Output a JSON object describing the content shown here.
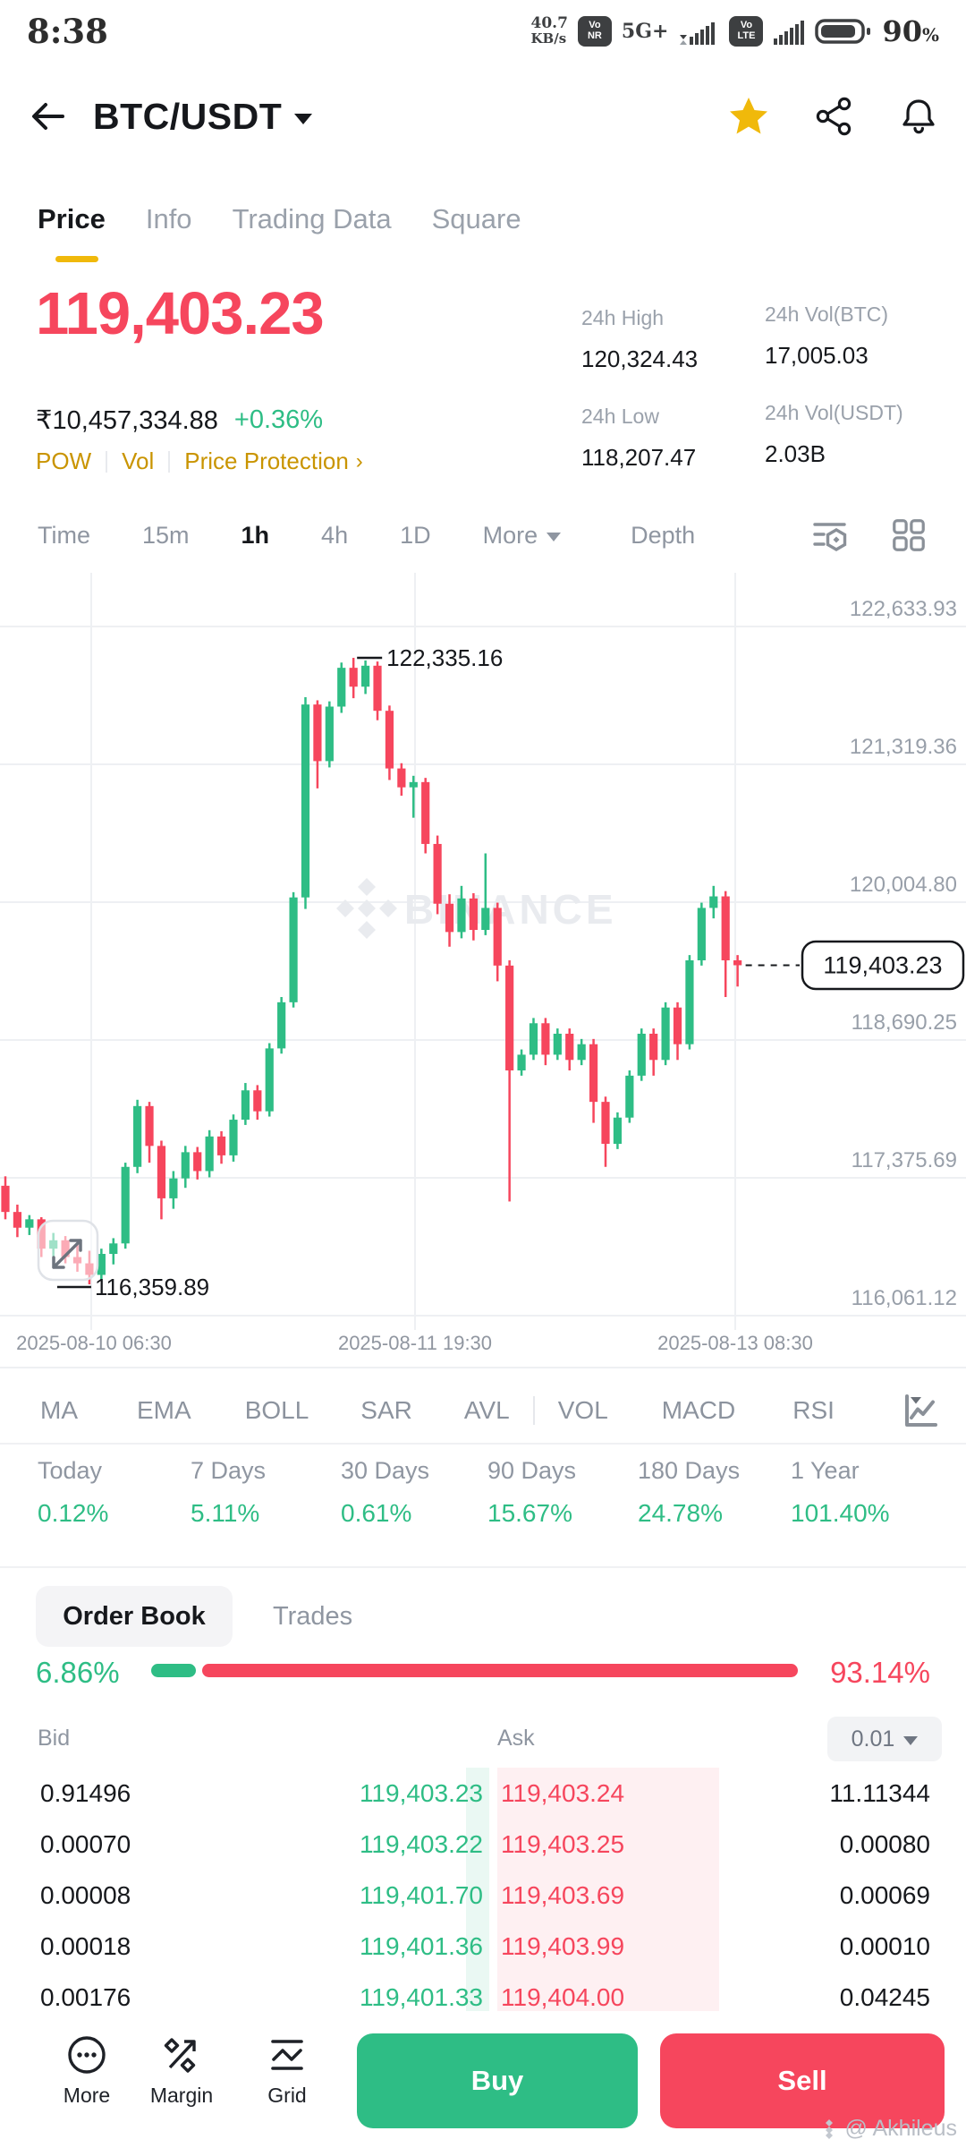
{
  "status_bar": {
    "time": "8:38",
    "net_speed": "40.7",
    "net_speed_unit": "KB/s",
    "badge_vonr": [
      "Vo",
      "NR"
    ],
    "network": "5G+",
    "badge_volte": [
      "Vo",
      "LTE"
    ],
    "battery_pct": "90",
    "battery_suffix": "%"
  },
  "header": {
    "pair": "BTC/USDT"
  },
  "nav_tabs": {
    "tabs": [
      {
        "label": "Price",
        "active": true
      },
      {
        "label": "Info",
        "active": false
      },
      {
        "label": "Trading Data",
        "active": false
      },
      {
        "label": "Square",
        "active": false
      }
    ]
  },
  "price_section": {
    "last_price": "119,403.23",
    "fiat_value": "₹10,457,334.88",
    "change_pct": "+0.36%",
    "tags": [
      "POW",
      "Vol",
      "Price Protection"
    ],
    "stats": [
      {
        "label": "24h High",
        "value": "120,324.43"
      },
      {
        "label": "24h Vol(BTC)",
        "value": "17,005.03"
      },
      {
        "label": "24h Low",
        "value": "118,207.47"
      },
      {
        "label": "24h Vol(USDT)",
        "value": "2.03B"
      }
    ]
  },
  "chart_toolbar": {
    "intervals": [
      "Time",
      "15m",
      "1h",
      "4h",
      "1D"
    ],
    "active_interval": "1h",
    "more_label": "More",
    "depth_label": "Depth"
  },
  "chart_data": {
    "type": "candlestick",
    "symbol": "BTC/USDT",
    "interval": "1h",
    "title": "BTC/USDT 1h candlestick chart",
    "up_color": "#2EBD85",
    "down_color": "#F6465D",
    "grid": true,
    "y_axis_labels": [
      "122,633.93",
      "121,319.36",
      "120,004.80",
      "118,690.25",
      "117,375.69",
      "116,061.12"
    ],
    "y_axis_values": [
      122633.93,
      121319.36,
      120004.8,
      118690.25,
      117375.69,
      116061.12
    ],
    "x_axis_labels": [
      "2025-08-10 06:30",
      "2025-08-11 19:30",
      "2025-08-13 08:30"
    ],
    "high_annotation_label": "122,335.16",
    "high_annotation_value": 122335.16,
    "low_annotation_label": "116,359.89",
    "low_annotation_value": 116359.89,
    "last_price_label": "119,403.23",
    "last_price_value": 119403.23,
    "watermark": "BINANCE",
    "candles": [
      [
        117300,
        117390,
        116980,
        117050
      ],
      [
        117050,
        117120,
        116810,
        116900
      ],
      [
        116900,
        117020,
        116830,
        116980
      ],
      [
        116980,
        117000,
        116620,
        116700
      ],
      [
        116700,
        116850,
        116600,
        116780
      ],
      [
        116780,
        116820,
        116560,
        116620
      ],
      [
        116620,
        116750,
        116480,
        116560
      ],
      [
        116560,
        116680,
        116359.89,
        116450
      ],
      [
        116450,
        116700,
        116400,
        116650
      ],
      [
        116650,
        116800,
        116550,
        116750
      ],
      [
        116750,
        117520,
        116700,
        117480
      ],
      [
        117480,
        118120,
        117420,
        118060
      ],
      [
        118060,
        118100,
        117520,
        117680
      ],
      [
        117680,
        117730,
        116980,
        117180
      ],
      [
        117180,
        117440,
        117080,
        117370
      ],
      [
        117370,
        117680,
        117280,
        117620
      ],
      [
        117620,
        117670,
        117360,
        117440
      ],
      [
        117440,
        117830,
        117380,
        117770
      ],
      [
        117770,
        117820,
        117510,
        117590
      ],
      [
        117590,
        117980,
        117530,
        117930
      ],
      [
        117930,
        118280,
        117880,
        118210
      ],
      [
        118210,
        118260,
        117930,
        118010
      ],
      [
        118010,
        118660,
        117960,
        118610
      ],
      [
        118610,
        119100,
        118560,
        119050
      ],
      [
        119050,
        120100,
        119000,
        120050
      ],
      [
        120050,
        121960,
        119940,
        121890
      ],
      [
        121890,
        121930,
        121090,
        121350
      ],
      [
        121350,
        121920,
        121290,
        121870
      ],
      [
        121870,
        122290,
        121810,
        122240
      ],
      [
        122240,
        122335.16,
        121950,
        122060
      ],
      [
        122060,
        122310,
        121990,
        122260
      ],
      [
        122260,
        122300,
        121740,
        121830
      ],
      [
        121830,
        121880,
        121170,
        121280
      ],
      [
        121280,
        121330,
        121020,
        121100
      ],
      [
        121100,
        121210,
        120810,
        121150
      ],
      [
        121150,
        121190,
        120470,
        120560
      ],
      [
        120560,
        120640,
        119890,
        119990
      ],
      [
        119990,
        120080,
        119580,
        119720
      ],
      [
        119720,
        120160,
        119660,
        120040
      ],
      [
        120040,
        120090,
        119640,
        119740
      ],
      [
        119740,
        120470,
        119690,
        119950
      ],
      [
        119950,
        120000,
        119250,
        119400
      ],
      [
        119400,
        119450,
        117150,
        118400
      ],
      [
        118400,
        118600,
        118350,
        118550
      ],
      [
        118550,
        118900,
        118500,
        118850
      ],
      [
        118850,
        118900,
        118450,
        118550
      ],
      [
        118550,
        118800,
        118500,
        118750
      ],
      [
        118750,
        118800,
        118400,
        118500
      ],
      [
        118500,
        118700,
        118450,
        118650
      ],
      [
        118650,
        118700,
        117900,
        118100
      ],
      [
        118100,
        118150,
        117480,
        117700
      ],
      [
        117700,
        118000,
        117650,
        117950
      ],
      [
        117950,
        118400,
        117900,
        118350
      ],
      [
        118350,
        118800,
        118300,
        118750
      ],
      [
        118750,
        118800,
        118350,
        118500
      ],
      [
        118500,
        119050,
        118450,
        119000
      ],
      [
        119000,
        119050,
        118500,
        118650
      ],
      [
        118650,
        119500,
        118600,
        119450
      ],
      [
        119450,
        120000,
        119400,
        119950
      ],
      [
        119950,
        120160,
        119850,
        120060
      ],
      [
        120060,
        120110,
        119100,
        119450
      ],
      [
        119450,
        119500,
        119200,
        119403.23
      ]
    ]
  },
  "indicators": {
    "main": [
      "MA",
      "EMA",
      "BOLL",
      "SAR",
      "AVL"
    ],
    "sub": [
      "VOL",
      "MACD",
      "RSI"
    ]
  },
  "returns": {
    "items": [
      {
        "label": "Today",
        "value": "0.12%"
      },
      {
        "label": "7 Days",
        "value": "5.11%"
      },
      {
        "label": "30 Days",
        "value": "0.61%"
      },
      {
        "label": "90 Days",
        "value": "15.67%"
      },
      {
        "label": "180 Days",
        "value": "24.78%"
      },
      {
        "label": "1 Year",
        "value": "101.40%"
      }
    ]
  },
  "orderbook": {
    "tab_active": "Order Book",
    "tab_inactive": "Trades",
    "buy_pct_label": "6.86%",
    "sell_pct_label": "93.14%",
    "buy_pct": 6.86,
    "sell_pct": 93.14,
    "bid_label": "Bid",
    "ask_label": "Ask",
    "precision": "0.01",
    "rows": [
      {
        "bid_qty": "0.91496",
        "bid_price": "119,403.23",
        "ask_price": "119,403.24",
        "ask_qty": "11.11344"
      },
      {
        "bid_qty": "0.00070",
        "bid_price": "119,403.22",
        "ask_price": "119,403.25",
        "ask_qty": "0.00080"
      },
      {
        "bid_qty": "0.00008",
        "bid_price": "119,401.70",
        "ask_price": "119,403.69",
        "ask_qty": "0.00069"
      },
      {
        "bid_qty": "0.00018",
        "bid_price": "119,401.36",
        "ask_price": "119,403.99",
        "ask_qty": "0.00010"
      },
      {
        "bid_qty": "0.00176",
        "bid_price": "119,401.33",
        "ask_price": "119,404.00",
        "ask_qty": "0.04245"
      }
    ]
  },
  "bottom_bar": {
    "more": "More",
    "margin": "Margin",
    "grid": "Grid",
    "buy": "Buy",
    "sell": "Sell",
    "credit": "@ Akhileus"
  },
  "colors": {
    "up": "#2EBD85",
    "down": "#F6465D",
    "accent": "#F0B90B",
    "gold": "#C99400"
  }
}
